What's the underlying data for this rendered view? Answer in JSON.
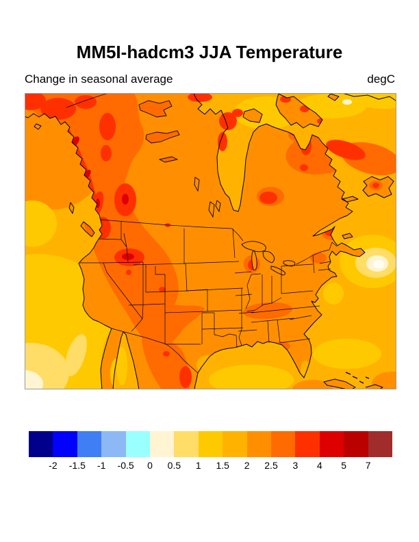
{
  "figure": {
    "title": "MM5I-hadcm3 JJA Temperature",
    "subtitle_left": "Change in seasonal average",
    "units_label": "degC"
  },
  "chart_data": {
    "type": "heatmap",
    "subtype": "filled_contour_map",
    "title": "MM5I-hadcm3 JJA Temperature",
    "subtitle": "Change in seasonal average",
    "units": "degC",
    "geography": "North America: Alaska, Canada, contiguous United States with state borders, northern Mexico, Hudson Bay, Great Lakes, western Atlantic and eastern Pacific",
    "contour_levels": [
      -2,
      -1.5,
      -1,
      -0.5,
      0,
      0.5,
      1,
      1.5,
      2,
      2.5,
      3,
      4,
      5,
      7
    ],
    "palette": [
      "#00008C",
      "#0202FA",
      "#3F7EF5",
      "#8CB8F5",
      "#99FFFF",
      "#FFF5D2",
      "#FFDD66",
      "#FFC900",
      "#FFB300",
      "#FF8F00",
      "#FF6B00",
      "#FF3000",
      "#DE0000",
      "#BB0000",
      "#A02C2C"
    ],
    "legend_position": "bottom",
    "grid": false,
    "value_summary": [
      {
        "area": "Most land: central/eastern Canada, Great Plains, eastern US",
        "range_degC": "2 to 2.5"
      },
      {
        "area": "Interior western US (Rockies/Great Basin), Yukon and interior BC, Quebec-Labrador, northern Mexico",
        "range_degC": "2.5 to 3"
      },
      {
        "area": "Alaska/BC coastal mountains, Idaho-Montana, Labrador coast, Sierra Madre (Mexico)",
        "range_degC": "3 to 5"
      },
      {
        "area": "Oceans in general (Pacific, Atlantic, Gulf of Mexico, Arctic waters)",
        "range_degC": "1 to 2.5"
      },
      {
        "area": "Northwest Atlantic bullseye southeast of Nova Scotia",
        "range_degC": "0 to 1"
      },
      {
        "area": "Far southwest Pacific corner and band off California coast",
        "range_degC": "0 to 1.5"
      }
    ]
  },
  "colorbar": {
    "colors": [
      "#00008C",
      "#0202FA",
      "#3F7EF5",
      "#8CB8F5",
      "#99FFFF",
      "#FFF5D2",
      "#FFDD66",
      "#FFC900",
      "#FFB300",
      "#FF8F00",
      "#FF6B00",
      "#FF3000",
      "#DE0000",
      "#BB0000",
      "#A02C2C"
    ],
    "tick_labels": [
      "-2",
      "-1.5",
      "-1",
      "-0.5",
      "0",
      "0.5",
      "1",
      "1.5",
      "2",
      "2.5",
      "3",
      "4",
      "5",
      "7"
    ]
  }
}
